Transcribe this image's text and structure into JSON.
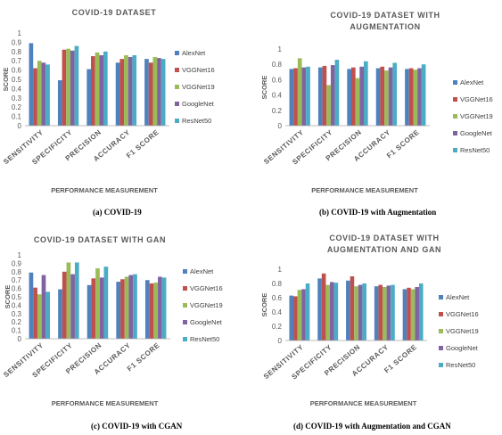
{
  "series_colors": [
    "#4f81bd",
    "#c0504d",
    "#9bbb59",
    "#8064a2",
    "#4bacc6"
  ],
  "chart_data": [
    {
      "type": "bar",
      "title_lines": [
        "COVID-19 DATASET"
      ],
      "xlabel": "PERFORMANCE MEASUREMENT",
      "ylabel": "SCORE",
      "ylim": [
        0,
        1
      ],
      "yticks": [
        "0",
        "0.1",
        "0.2",
        "0.3",
        "0.4",
        "0.5",
        "0.6",
        "0.7",
        "0.8",
        "0.9",
        "1"
      ],
      "categories": [
        "SENSITIVITY",
        "SPECIFICITY",
        "PRECISION",
        "ACCURACY",
        "F1 SCORE"
      ],
      "series": [
        {
          "name": "AlexNet",
          "values": [
            0.89,
            0.49,
            0.61,
            0.68,
            0.72
          ]
        },
        {
          "name": "VGGNet16",
          "values": [
            0.62,
            0.82,
            0.75,
            0.72,
            0.68
          ]
        },
        {
          "name": "VGGNet19",
          "values": [
            0.7,
            0.83,
            0.79,
            0.76,
            0.74
          ]
        },
        {
          "name": "GoogleNet",
          "values": [
            0.68,
            0.81,
            0.76,
            0.74,
            0.73
          ]
        },
        {
          "name": "ResNet50",
          "values": [
            0.66,
            0.86,
            0.8,
            0.76,
            0.72
          ]
        }
      ],
      "legend": [
        "AlexNet",
        "VGGNet16",
        "VGGNet19",
        "GoogleNet",
        "ResNet50"
      ],
      "legend_position": "right",
      "grid": false,
      "caption": "(a) COVID-19"
    },
    {
      "type": "bar",
      "title_lines": [
        "COVID-19 DATASET WITH",
        "AUGMENTATION"
      ],
      "xlabel": "PERFORMANCE MEASUREMENT",
      "ylabel": "SCORE",
      "ylim": [
        0,
        1
      ],
      "yticks": [
        "0",
        "0.2",
        "0.4",
        "0.6",
        "0.8",
        "1"
      ],
      "categories": [
        "SENSITIVITY",
        "SPECIFICITY",
        "PRECISION",
        "ACCURACY",
        "F1 SCORE"
      ],
      "series": [
        {
          "name": "AlexNet",
          "values": [
            0.74,
            0.76,
            0.74,
            0.75,
            0.74
          ]
        },
        {
          "name": "VGGNet16",
          "values": [
            0.75,
            0.78,
            0.76,
            0.77,
            0.75
          ]
        },
        {
          "name": "VGGNet19",
          "values": [
            0.88,
            0.53,
            0.62,
            0.72,
            0.73
          ]
        },
        {
          "name": "GoogleNet",
          "values": [
            0.76,
            0.79,
            0.77,
            0.76,
            0.75
          ]
        },
        {
          "name": "ResNet50",
          "values": [
            0.77,
            0.86,
            0.84,
            0.82,
            0.8
          ]
        }
      ],
      "legend": [
        "AlexNet",
        "VGGNet16",
        "VGGNet19",
        "GoogleNet",
        "ResNet50"
      ],
      "legend_position": "right",
      "grid": false,
      "caption": "(b) COVID-19 with Augmentation"
    },
    {
      "type": "bar",
      "title_lines": [
        "COVID-19 DATASET WITH GAN"
      ],
      "xlabel": "PERFORMANCE MEASUREMENT",
      "ylabel": "SCORE",
      "ylim": [
        0,
        1
      ],
      "yticks": [
        "0",
        "0.1",
        "0.2",
        "0.3",
        "0.4",
        "0.5",
        "0.6",
        "0.7",
        "0.8",
        "0.9",
        "1"
      ],
      "categories": [
        "SENSITIVITY",
        "SPECIFICITY",
        "PRECISION",
        "ACCURACY",
        "F1 SCORE"
      ],
      "series": [
        {
          "name": "AlexNet",
          "values": [
            0.79,
            0.59,
            0.64,
            0.68,
            0.7
          ]
        },
        {
          "name": "VGGNet16",
          "values": [
            0.61,
            0.8,
            0.72,
            0.71,
            0.66
          ]
        },
        {
          "name": "VGGNet19",
          "values": [
            0.53,
            0.91,
            0.84,
            0.74,
            0.67
          ]
        },
        {
          "name": "GoogleNet",
          "values": [
            0.76,
            0.77,
            0.73,
            0.76,
            0.74
          ]
        },
        {
          "name": "ResNet50",
          "values": [
            0.56,
            0.91,
            0.86,
            0.77,
            0.73
          ]
        }
      ],
      "legend": [
        "AlexNet",
        "VGGNet16",
        "VGGNet19",
        "GoogleNet",
        "ResNet50"
      ],
      "legend_position": "right",
      "grid": false,
      "caption": "(c) COVID-19 with CGAN"
    },
    {
      "type": "bar",
      "title_lines": [
        "COVID-19 DATASET WITH",
        "AUGMENTATION AND GAN"
      ],
      "xlabel": "PERFORMANCE MEASUREMENT",
      "ylabel": "SCORE",
      "ylim": [
        0,
        1
      ],
      "yticks": [
        "0",
        "0.2",
        "0.4",
        "0.6",
        "0.8",
        "1"
      ],
      "categories": [
        "SENSITIVITY",
        "SPECIFICITY",
        "PRECISION",
        "ACCURACY",
        "F1 SCORE"
      ],
      "series": [
        {
          "name": "AlexNet",
          "values": [
            0.63,
            0.87,
            0.84,
            0.76,
            0.72
          ]
        },
        {
          "name": "VGGNet16",
          "values": [
            0.62,
            0.94,
            0.9,
            0.78,
            0.74
          ]
        },
        {
          "name": "VGGNet19",
          "values": [
            0.71,
            0.78,
            0.76,
            0.75,
            0.72
          ]
        },
        {
          "name": "GoogleNet",
          "values": [
            0.72,
            0.82,
            0.78,
            0.77,
            0.75
          ]
        },
        {
          "name": "ResNet50",
          "values": [
            0.8,
            0.81,
            0.8,
            0.78,
            0.8
          ]
        }
      ],
      "legend": [
        "AlexNet",
        "VGGNet16",
        "VGGNet19",
        "GoogleNet",
        "ResNet50"
      ],
      "legend_position": "right",
      "grid": false,
      "caption": "(d) COVID-19 with Augmentation and CGAN"
    }
  ]
}
